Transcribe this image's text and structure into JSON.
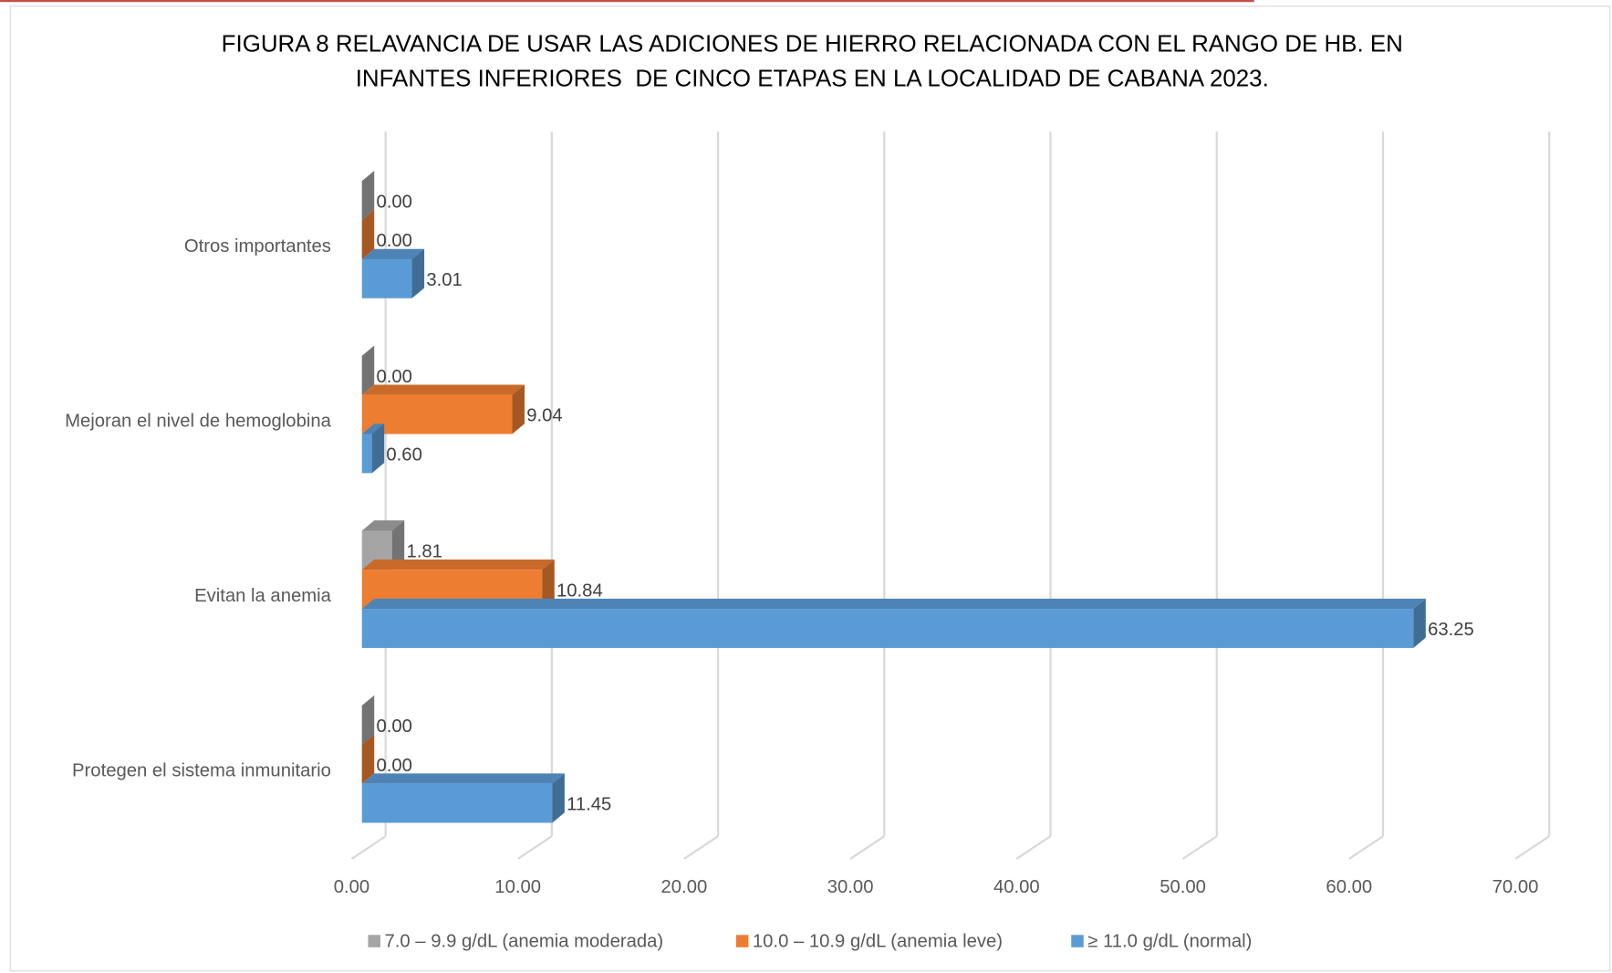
{
  "chart_data": {
    "type": "bar3d_horizontal",
    "title": [
      "FIGURA 8 RELAVANCIA DE USAR LAS ADICIONES DE HIERRO RELACIONADA CON EL RANGO DE HB. EN",
      "INFANTES INFERIORES  DE CINCO ETAPAS EN LA LOCALIDAD DE CABANA 2023."
    ],
    "categories": [
      "Otros importantes",
      "Mejoran el nivel de hemoglobina",
      "Evitan la anemia",
      "Protegen el sistema inmunitario"
    ],
    "series": [
      {
        "name": "7.0 – 9.9 g/dL (anemia moderada)",
        "color": "#a5a5a5",
        "values": [
          0,
          0,
          1.81,
          0
        ],
        "value_labels": [
          "0.00",
          "0.00",
          "1.81",
          "0.00"
        ]
      },
      {
        "name": "10.0 – 10.9 g/dL (anemia leve)",
        "color": "#ed7d31",
        "values": [
          0,
          9.04,
          10.84,
          0
        ],
        "value_labels": [
          "0.00",
          "9.04",
          "10.84",
          "0.00"
        ]
      },
      {
        "name": "≥ 11.0 g/dL (normal)",
        "color": "#5b9bd5",
        "values": [
          3.01,
          0.6,
          63.25,
          11.45
        ],
        "value_labels": [
          "3.01",
          "0.60",
          "63.25",
          "11.45"
        ]
      }
    ],
    "xlim": [
      0,
      70
    ],
    "xticks": [
      {
        "value": 0,
        "label": "0.00"
      },
      {
        "value": 10,
        "label": "10.00"
      },
      {
        "value": 20,
        "label": "20.00"
      },
      {
        "value": 30,
        "label": "30.00"
      },
      {
        "value": 40,
        "label": "40.00"
      },
      {
        "value": 50,
        "label": "50.00"
      },
      {
        "value": 60,
        "label": "60.00"
      },
      {
        "value": 70,
        "label": "70.00"
      }
    ],
    "grid": true,
    "legend": "bottom"
  }
}
